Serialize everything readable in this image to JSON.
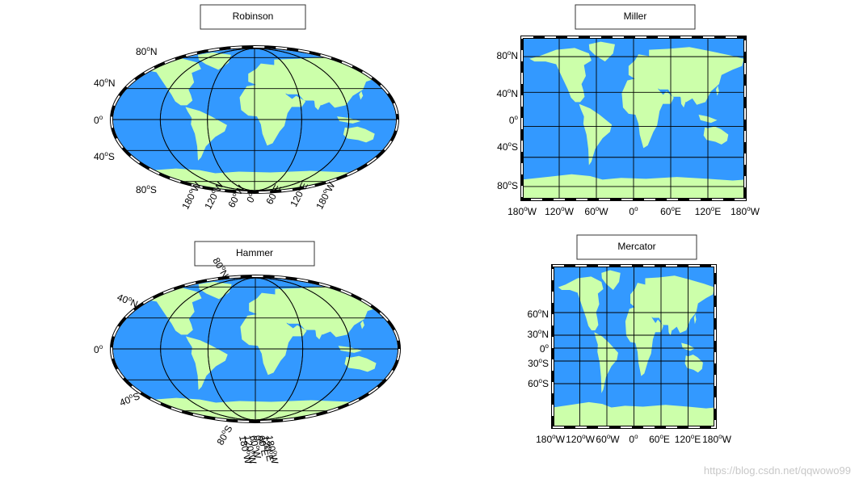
{
  "colors": {
    "ocean": "#3399ff",
    "land": "#ccffaa",
    "grid": "#000000",
    "title_box_border": "#333333",
    "background": "#ffffff"
  },
  "maps": [
    {
      "title": "Robinson",
      "projection": "robinson",
      "lat_labels": [
        {
          "deg": "80",
          "hemi": "N"
        },
        {
          "deg": "40",
          "hemi": "N"
        },
        {
          "deg": "0",
          "hemi": ""
        },
        {
          "deg": "40",
          "hemi": "S"
        },
        {
          "deg": "80",
          "hemi": "S"
        }
      ],
      "lon_labels": [
        {
          "deg": "180",
          "hemi": "W"
        },
        {
          "deg": "120",
          "hemi": "W"
        },
        {
          "deg": "60",
          "hemi": "W"
        },
        {
          "deg": "0",
          "hemi": ""
        },
        {
          "deg": "60",
          "hemi": "E"
        },
        {
          "deg": "120",
          "hemi": "E"
        },
        {
          "deg": "180",
          "hemi": "W"
        }
      ]
    },
    {
      "title": "Miller",
      "projection": "miller",
      "lat_labels": [
        {
          "deg": "80",
          "hemi": "N"
        },
        {
          "deg": "40",
          "hemi": "N"
        },
        {
          "deg": "0",
          "hemi": ""
        },
        {
          "deg": "40",
          "hemi": "S"
        },
        {
          "deg": "80",
          "hemi": "S"
        }
      ],
      "lon_labels": [
        {
          "deg": "180",
          "hemi": "W"
        },
        {
          "deg": "120",
          "hemi": "W"
        },
        {
          "deg": "60",
          "hemi": "W"
        },
        {
          "deg": "0",
          "hemi": ""
        },
        {
          "deg": "60",
          "hemi": "E"
        },
        {
          "deg": "120",
          "hemi": "E"
        },
        {
          "deg": "180",
          "hemi": "W"
        }
      ]
    },
    {
      "title": "Hammer",
      "projection": "hammer",
      "lat_labels": [
        {
          "deg": "80",
          "hemi": "N"
        },
        {
          "deg": "40",
          "hemi": "N"
        },
        {
          "deg": "0",
          "hemi": ""
        },
        {
          "deg": "40",
          "hemi": "S"
        },
        {
          "deg": "80",
          "hemi": "S"
        }
      ],
      "lon_labels": [
        {
          "deg": "180",
          "hemi": "W"
        },
        {
          "deg": "120",
          "hemi": "W"
        },
        {
          "deg": "60",
          "hemi": "W"
        },
        {
          "deg": "0",
          "hemi": ""
        },
        {
          "deg": "60",
          "hemi": "E"
        },
        {
          "deg": "120",
          "hemi": "E"
        },
        {
          "deg": "180",
          "hemi": "W"
        }
      ]
    },
    {
      "title": "Mercator",
      "projection": "mercator",
      "lat_labels": [
        {
          "deg": "60",
          "hemi": "N"
        },
        {
          "deg": "30",
          "hemi": "N"
        },
        {
          "deg": "0",
          "hemi": ""
        },
        {
          "deg": "30",
          "hemi": "S"
        },
        {
          "deg": "60",
          "hemi": "S"
        }
      ],
      "lon_labels": [
        {
          "deg": "180",
          "hemi": "W"
        },
        {
          "deg": "120",
          "hemi": "W"
        },
        {
          "deg": "60",
          "hemi": "W"
        },
        {
          "deg": "0",
          "hemi": ""
        },
        {
          "deg": "60",
          "hemi": "E"
        },
        {
          "deg": "120",
          "hemi": "E"
        },
        {
          "deg": "180",
          "hemi": "W"
        }
      ]
    }
  ],
  "watermark": "https://blog.csdn.net/qqwowo99"
}
